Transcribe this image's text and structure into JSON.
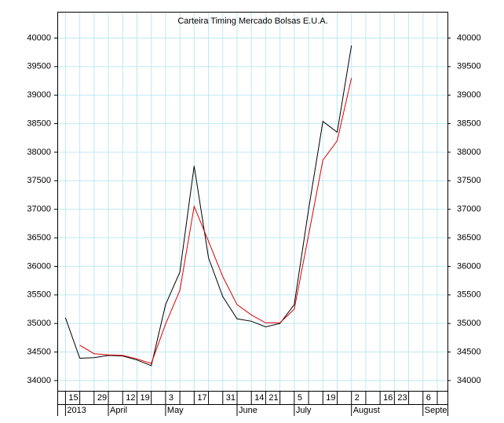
{
  "chart_data": {
    "type": "line",
    "title": "Carteira Timing Mercado Bolsas E.U.A.",
    "x": [
      "2013-03-15",
      "2013-03-22",
      "2013-03-29",
      "2013-04-05",
      "2013-04-12",
      "2013-04-19",
      "2013-04-26",
      "2013-05-03",
      "2013-05-10",
      "2013-05-17",
      "2013-05-24",
      "2013-05-31",
      "2013-06-07",
      "2013-06-14",
      "2013-06-21",
      "2013-06-28",
      "2013-07-05",
      "2013-07-12",
      "2013-07-19",
      "2013-07-26",
      "2013-08-02"
    ],
    "series": [
      {
        "color": "#000000",
        "values": [
          35100,
          34390,
          34400,
          34440,
          34430,
          34360,
          34260,
          35330,
          35900,
          37760,
          36150,
          35470,
          35080,
          35040,
          34940,
          35000,
          35330,
          37000,
          38540,
          38350,
          39870
        ]
      },
      {
        "color": "#dd0000",
        "values": [
          null,
          34620,
          34470,
          34450,
          34440,
          34380,
          34300,
          34990,
          35580,
          37050,
          36440,
          35820,
          35330,
          35150,
          35010,
          35010,
          35250,
          36550,
          37860,
          38200,
          39300
        ]
      }
    ],
    "xlim": [
      "2013-03-11",
      "2013-09-18"
    ],
    "xticks": [
      {
        "value": "2013-03-15",
        "label": "15"
      },
      {
        "value": "2013-03-29",
        "label": "29"
      },
      {
        "value": "2013-04-12",
        "label": "12"
      },
      {
        "value": "2013-04-19",
        "label": "19"
      },
      {
        "value": "2013-05-03",
        "label": "3"
      },
      {
        "value": "2013-05-17",
        "label": "17"
      },
      {
        "value": "2013-05-31",
        "label": "31"
      },
      {
        "value": "2013-06-14",
        "label": "14"
      },
      {
        "value": "2013-06-21",
        "label": "21"
      },
      {
        "value": "2013-07-05",
        "label": "5"
      },
      {
        "value": "2013-07-19",
        "label": "19"
      },
      {
        "value": "2013-08-02",
        "label": "2"
      },
      {
        "value": "2013-08-16",
        "label": "16"
      },
      {
        "value": "2013-08-23",
        "label": "23"
      },
      {
        "value": "2013-09-06",
        "label": "6"
      }
    ],
    "minor_xticks": [
      "2013-03-22",
      "2013-04-05",
      "2013-04-26",
      "2013-05-10",
      "2013-05-24",
      "2013-06-07",
      "2013-06-28",
      "2013-07-12",
      "2013-07-26",
      "2013-08-09",
      "2013-08-30",
      "2013-09-13"
    ],
    "month_ticks": [
      {
        "value": "2013-03-15",
        "label": "2013"
      },
      {
        "value": "2013-04-05",
        "label": "April"
      },
      {
        "value": "2013-05-03",
        "label": "May"
      },
      {
        "value": "2013-06-07",
        "label": "June"
      },
      {
        "value": "2013-07-05",
        "label": "July"
      },
      {
        "value": "2013-08-02",
        "label": "August"
      },
      {
        "value": "2013-09-06",
        "label": "September"
      }
    ],
    "ylim": [
      33820,
      40460
    ],
    "yticks": [
      34000,
      34500,
      35000,
      35500,
      36000,
      36500,
      37000,
      37500,
      38000,
      38500,
      39000,
      39500,
      40000
    ],
    "grid": true
  }
}
